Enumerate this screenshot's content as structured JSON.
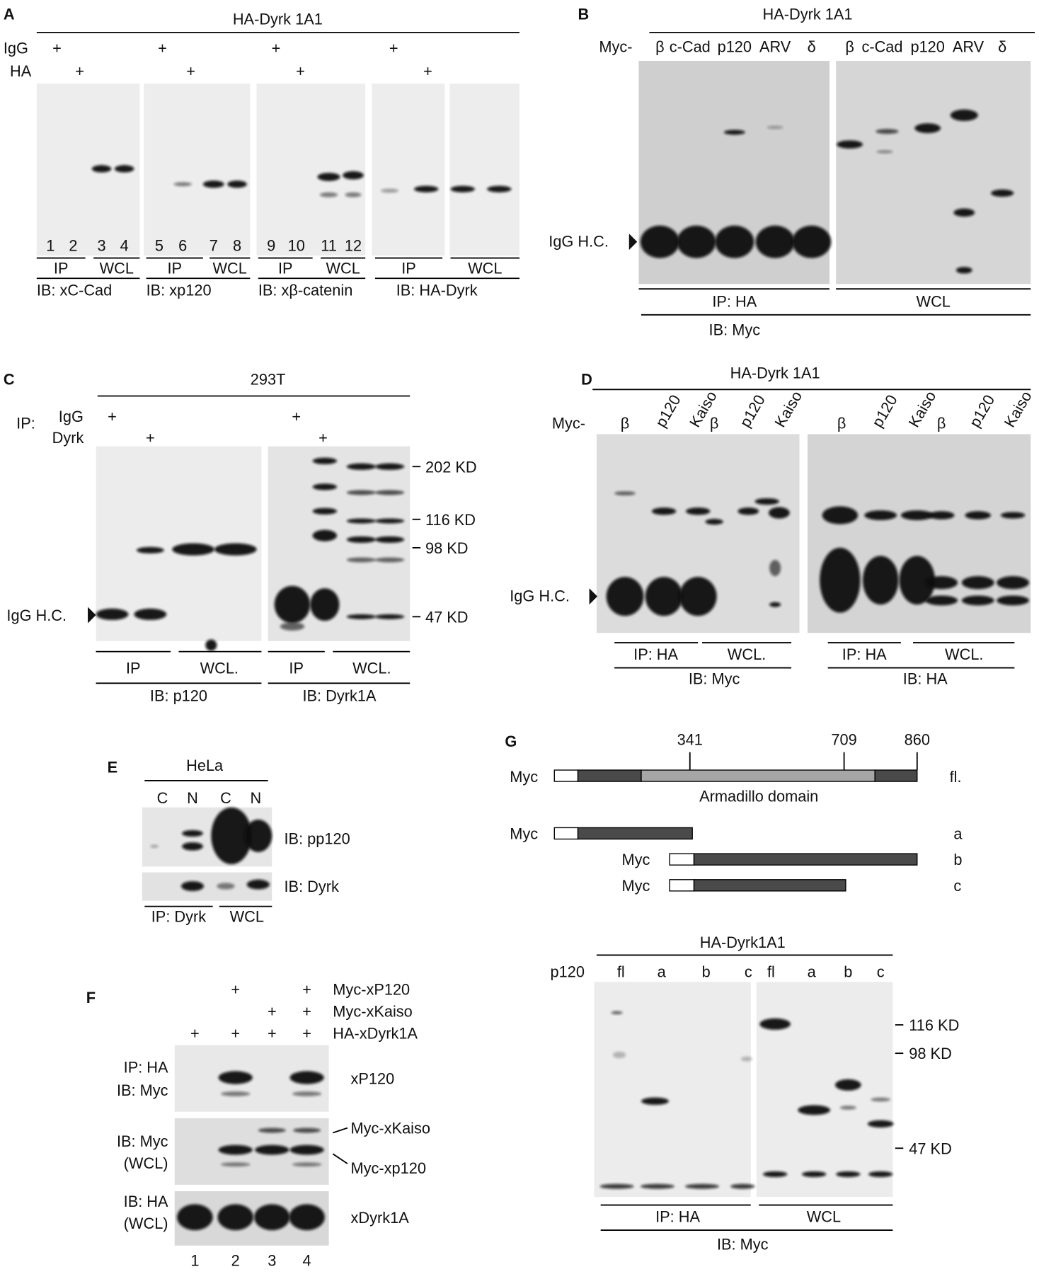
{
  "panel_a": {
    "label": "A",
    "header": "HA-Dyrk 1A1",
    "rows": [
      {
        "name": "IgG",
        "sign": "+"
      },
      {
        "name": "HA",
        "sign": "+"
      }
    ],
    "lanes": [
      1,
      2,
      3,
      4,
      5,
      6,
      7,
      8,
      9,
      10,
      11,
      12
    ],
    "fractions": [
      "IP",
      "WCL"
    ],
    "blots": [
      "IB: xC-Cad",
      "IB: xp120",
      "IB: xβ-catenin",
      "IB: HA-Dyrk"
    ]
  },
  "panel_b": {
    "label": "B",
    "header": "HA-Dyrk 1A1",
    "prefix": "Myc-",
    "lanes": [
      "β",
      "c-Cad",
      "p120",
      "ARV",
      "δ"
    ],
    "marker": "IgG H.C.",
    "fractions": [
      "IP: HA",
      "WCL"
    ],
    "blot": "IB: Myc"
  },
  "panel_c": {
    "label": "C",
    "header": "293T",
    "ip": "IP:",
    "rows": [
      {
        "name": "IgG",
        "sign": "+"
      },
      {
        "name": "Dyrk",
        "sign": "+"
      }
    ],
    "markers": [
      "202 KD",
      "116 KD",
      "98 KD",
      "47 KD"
    ],
    "marker": "IgG H.C.",
    "fractions": [
      "IP",
      "WCL."
    ],
    "blots": [
      "IB: p120",
      "IB: Dyrk1A"
    ]
  },
  "panel_d": {
    "label": "D",
    "header": "HA-Dyrk 1A1",
    "prefix": "Myc-",
    "lanes": [
      "β",
      "p120",
      "Kaiso"
    ],
    "marker": "IgG H.C.",
    "fractions": [
      "IP: HA",
      "WCL."
    ],
    "blots": [
      "IB: Myc",
      "IB: HA"
    ]
  },
  "panel_e": {
    "label": "E",
    "header": "HeLa",
    "lanes": [
      "C",
      "N"
    ],
    "blots": [
      "IB: pp120",
      "IB: Dyrk"
    ],
    "fractions": [
      "IP: Dyrk",
      "WCL"
    ]
  },
  "panel_f": {
    "label": "F",
    "rows": [
      {
        "name": "Myc-xP120",
        "sign": "+"
      },
      {
        "name": "Myc-xKaiso",
        "sign": "+"
      },
      {
        "name": "HA-xDyrk1A",
        "sign": "+"
      }
    ],
    "blots": [
      [
        "IP: HA",
        "IB: Myc"
      ],
      [
        "IB: Myc",
        "(WCL)"
      ],
      [
        "IB: HA",
        "(WCL)"
      ]
    ],
    "bands": [
      "xP120",
      "Myc-xKaiso",
      "Myc-xp120",
      "xDyrk1A"
    ],
    "lanes": [
      1,
      2,
      3,
      4
    ]
  },
  "panel_g": {
    "label": "G",
    "positions": [
      341,
      709,
      860
    ],
    "tag": "Myc",
    "domain": "Armadillo domain",
    "constructs": [
      "fl.",
      "a",
      "b",
      "c"
    ],
    "header": "HA-Dyrk1A1",
    "prefix": "p120",
    "lanes": [
      "fl",
      "a",
      "b",
      "c"
    ],
    "markers": [
      "116 KD",
      "98 KD",
      "47 KD"
    ],
    "fractions": [
      "IP: HA",
      "WCL"
    ],
    "blot": "IB: Myc"
  }
}
